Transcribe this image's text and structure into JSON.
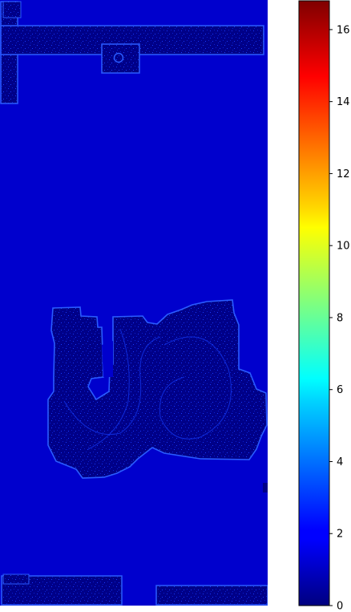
{
  "chart_data": {
    "type": "heatmap",
    "title": "",
    "xlabel": "",
    "ylabel": "",
    "colormap": "jet",
    "colorbar": {
      "min": 0,
      "max": 16.8,
      "ticks": [
        0,
        2,
        4,
        6,
        8,
        10,
        12,
        14,
        16
      ],
      "tick_labels": [
        "0",
        "2",
        "4",
        "6",
        "8",
        "10",
        "12",
        "14",
        "16"
      ],
      "orientation": "vertical",
      "placement": "right"
    },
    "background_value": 0.9,
    "regions": [
      {
        "name": "top-left vertical bar",
        "value": 0.2
      },
      {
        "name": "top horizontal bar",
        "value": 0.2
      },
      {
        "name": "top tab with circle",
        "value": 0.2
      },
      {
        "name": "central organic structure",
        "value": 0.2
      },
      {
        "name": "bottom-left strip",
        "value": 0.2
      },
      {
        "name": "bottom-right strip",
        "value": 0.2
      }
    ],
    "grid": false,
    "axes_visible": false
  },
  "colors": {
    "background_field": "#0000CD",
    "dark_region": "#000088",
    "edge_speckle": "#1E5BFF",
    "frame": "#000000",
    "text": "#000000"
  }
}
